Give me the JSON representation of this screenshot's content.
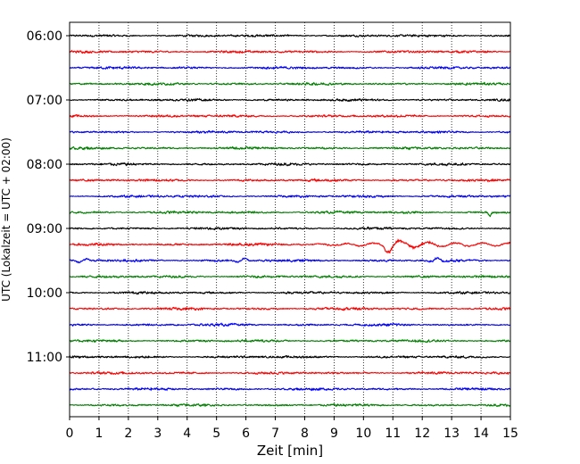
{
  "chart_data": {
    "type": "line",
    "xlabel": "Zeit  [min]",
    "ylabel": "UTC (Lokalzeit = UTC + 02:00)",
    "xlim": [
      0,
      15
    ],
    "x_ticks": [
      0,
      1,
      2,
      3,
      4,
      5,
      6,
      7,
      8,
      9,
      10,
      11,
      12,
      13,
      14,
      15
    ],
    "x_tick_labels": [
      "0",
      "1",
      "2",
      "3",
      "4",
      "5",
      "6",
      "7",
      "8",
      "9",
      "10",
      "11",
      "12",
      "13",
      "14",
      "15"
    ],
    "y_tick_labels": [
      "06:00",
      "07:00",
      "08:00",
      "09:00",
      "10:00",
      "11:00"
    ],
    "grid_x": true,
    "trace_interval_minutes": 15,
    "trace_count": 24,
    "trace_colors": [
      "#000000",
      "#ff0000",
      "#0000ff",
      "#008000"
    ],
    "events": [
      {
        "trace_start": "08:45",
        "minute": 14.3,
        "amplitude": "small spike"
      },
      {
        "trace_start": "09:15",
        "minute": 10.8,
        "amplitude": "large wave train from ~8 to ~15 min"
      },
      {
        "trace_start": "09:30",
        "minute": 0.4,
        "amplitude": "moderate"
      },
      {
        "trace_start": "09:30",
        "minute": 5.9,
        "amplitude": "moderate"
      },
      {
        "trace_start": "09:30",
        "minute": 12.5,
        "amplitude": "moderate"
      }
    ]
  }
}
